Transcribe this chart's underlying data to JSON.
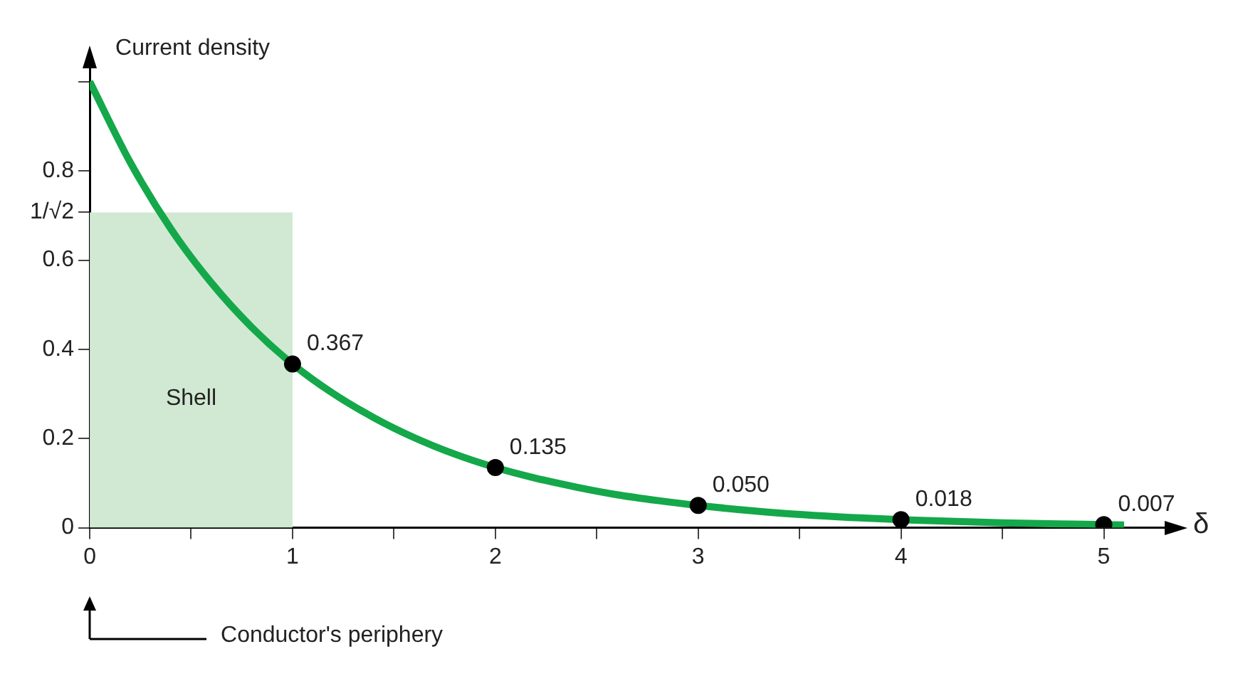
{
  "chart_data": {
    "type": "line",
    "ylabel": "Current density",
    "xlabel": "δ",
    "xlim": [
      0,
      5.3
    ],
    "ylim": [
      0,
      1.03
    ],
    "xticks": [
      0,
      {
        "value": 0.5,
        "label": null
      },
      1,
      {
        "value": 1.5,
        "label": null
      },
      2,
      {
        "value": 2.5,
        "label": null
      },
      3,
      {
        "value": 3.5,
        "label": null
      },
      4,
      {
        "value": 4.5,
        "label": null
      },
      5
    ],
    "yticks": [
      0,
      0.2,
      0.4,
      0.6,
      {
        "value": 0.707,
        "label": "1/√2"
      },
      0.8,
      {
        "value": 1,
        "label": null
      }
    ],
    "grid": false,
    "series": [
      {
        "type": "area",
        "name": "Shell",
        "color": "#d1e9d3",
        "x": [
          0,
          1
        ],
        "values": [
          0.707,
          0.707
        ]
      },
      {
        "type": "line",
        "color": "#14a84a",
        "marker": "none",
        "line_style": "solid",
        "x": [
          0,
          0.2,
          0.4,
          0.6,
          0.8,
          1,
          1.2,
          1.4,
          1.6,
          1.8,
          2,
          2.2,
          2.4,
          2.6,
          2.8,
          3,
          3.4,
          3.8,
          4,
          4.5,
          5,
          5.1
        ],
        "values": [
          1.0,
          0.819,
          0.67,
          0.549,
          0.449,
          0.367,
          0.301,
          0.247,
          0.202,
          0.165,
          0.135,
          0.111,
          0.091,
          0.074,
          0.061,
          0.05,
          0.033,
          0.022,
          0.018,
          0.011,
          0.007,
          0.006
        ]
      },
      {
        "type": "scatter",
        "color": "#000000",
        "marker": "circle",
        "x": [
          1,
          2,
          3,
          4,
          5
        ],
        "values": [
          0.367,
          0.135,
          0.05,
          0.018,
          0.007
        ],
        "value_labels": [
          "0.367",
          "0.135",
          "0.050",
          "0.018",
          "0.007"
        ]
      }
    ],
    "annotations": [
      "Conductor's periphery"
    ]
  }
}
